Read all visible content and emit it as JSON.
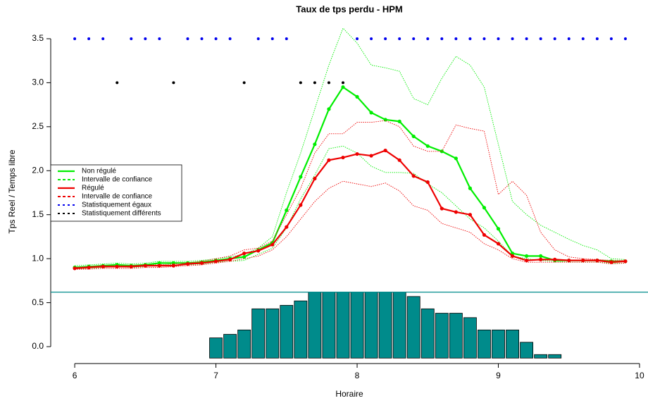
{
  "chart_data": {
    "type": "line",
    "title": "Taux de tps perdu - HPM",
    "x_label": "Horaire",
    "y_label": "Tps Reel / Temps libre",
    "xlim": [
      5.83,
      10.04
    ],
    "ylim": [
      -0.16,
      3.7
    ],
    "xticks": [
      6,
      7,
      8,
      9,
      10
    ],
    "yticks": [
      {
        "value": 0,
        "label": "0.0"
      },
      0.5,
      {
        "value": 1,
        "label": "1.0"
      },
      1.5,
      {
        "value": 2,
        "label": "2.0"
      },
      2.5,
      {
        "value": 3,
        "label": "3.0"
      },
      3.5
    ],
    "legend": "left",
    "x": [
      6.0,
      6.1,
      6.2,
      6.3,
      6.4,
      6.5,
      6.6,
      6.7,
      6.8,
      6.9,
      7.0,
      7.1,
      7.2,
      7.3,
      7.4,
      7.5,
      7.6,
      7.7,
      7.8,
      7.9,
      8.0,
      8.1,
      8.2,
      8.3,
      8.4,
      8.5,
      8.6,
      8.7,
      8.8,
      8.9,
      9.0,
      9.1,
      9.2,
      9.3,
      9.4,
      9.5,
      9.6,
      9.7,
      9.8,
      9.9
    ],
    "series": [
      {
        "name": "Non régulé",
        "color": "#00ee00",
        "style": "solid",
        "marker": true,
        "values": [
          0.9,
          0.91,
          0.92,
          0.93,
          0.92,
          0.93,
          0.95,
          0.95,
          0.95,
          0.96,
          0.98,
          1.0,
          1.02,
          1.1,
          1.18,
          1.55,
          1.93,
          2.3,
          2.7,
          2.95,
          2.84,
          2.66,
          2.58,
          2.56,
          2.39,
          2.28,
          2.22,
          2.14,
          1.8,
          1.58,
          1.34,
          1.06,
          1.03,
          1.03,
          0.98,
          0.98,
          0.98,
          0.98,
          0.97,
          0.97
        ]
      },
      {
        "name": "Intervalle de confiance",
        "color": "#00ee00",
        "style": "dotted",
        "marker": false,
        "values": [
          0.92,
          0.93,
          0.94,
          0.95,
          0.94,
          0.95,
          0.97,
          0.97,
          0.97,
          0.98,
          1.0,
          1.02,
          1.05,
          1.12,
          1.25,
          1.75,
          2.2,
          2.7,
          3.2,
          3.62,
          3.45,
          3.2,
          3.17,
          3.13,
          2.82,
          2.75,
          3.05,
          3.3,
          3.2,
          2.95,
          2.3,
          1.65,
          1.5,
          1.38,
          1.3,
          1.22,
          1.15,
          1.1,
          1.0,
          0.99
        ],
        "values_lower": [
          0.88,
          0.89,
          0.9,
          0.91,
          0.9,
          0.91,
          0.93,
          0.93,
          0.93,
          0.94,
          0.96,
          0.97,
          0.98,
          1.05,
          1.12,
          1.35,
          1.68,
          1.95,
          2.25,
          2.28,
          2.2,
          2.05,
          1.98,
          1.98,
          1.97,
          1.85,
          1.75,
          1.6,
          1.45,
          1.35,
          1.2,
          1.03,
          1.0,
          0.98,
          0.97,
          0.96,
          0.96,
          0.96,
          0.95,
          0.95
        ]
      },
      {
        "name": "Régulé",
        "color": "#ee0000",
        "style": "solid",
        "marker": true,
        "values": [
          0.89,
          0.9,
          0.91,
          0.91,
          0.91,
          0.92,
          0.92,
          0.92,
          0.94,
          0.95,
          0.97,
          0.99,
          1.06,
          1.09,
          1.16,
          1.36,
          1.61,
          1.91,
          2.12,
          2.15,
          2.19,
          2.17,
          2.23,
          2.12,
          1.94,
          1.87,
          1.57,
          1.53,
          1.5,
          1.27,
          1.17,
          1.03,
          0.98,
          0.99,
          0.99,
          0.98,
          0.98,
          0.98,
          0.96,
          0.97
        ]
      },
      {
        "name": "Intervalle de confiance",
        "color": "#ee0000",
        "style": "dotted",
        "marker": false,
        "values": [
          0.9,
          0.91,
          0.92,
          0.92,
          0.92,
          0.93,
          0.93,
          0.94,
          0.95,
          0.97,
          1.0,
          1.03,
          1.1,
          1.12,
          1.2,
          1.5,
          1.8,
          2.2,
          2.42,
          2.42,
          2.55,
          2.55,
          2.57,
          2.5,
          2.28,
          2.22,
          2.22,
          2.52,
          2.48,
          2.45,
          1.73,
          1.88,
          1.72,
          1.3,
          1.1,
          1.02,
          1.0,
          0.99,
          0.98,
          0.98
        ],
        "values_lower": [
          0.88,
          0.88,
          0.89,
          0.89,
          0.89,
          0.9,
          0.9,
          0.91,
          0.92,
          0.93,
          0.95,
          0.97,
          1.0,
          1.03,
          1.1,
          1.25,
          1.45,
          1.65,
          1.8,
          1.88,
          1.85,
          1.82,
          1.86,
          1.77,
          1.6,
          1.55,
          1.4,
          1.35,
          1.3,
          1.17,
          1.1,
          1.0,
          0.96,
          0.96,
          0.96,
          0.96,
          0.96,
          0.96,
          0.94,
          0.95
        ]
      },
      {
        "name": "Statistiquement égaux",
        "color": "#0000ee",
        "style": "points",
        "x": [
          6.0,
          6.1,
          6.2,
          6.4,
          6.5,
          6.6,
          6.8,
          6.9,
          7.0,
          7.1,
          7.3,
          7.4,
          7.5,
          8.0,
          8.1,
          8.2,
          8.3,
          8.4,
          8.5,
          8.6,
          8.7,
          8.8,
          8.9,
          9.0,
          9.1,
          9.2,
          9.3,
          9.4,
          9.5,
          9.6,
          9.7,
          9.8,
          9.9
        ],
        "values": [
          3.5,
          3.5,
          3.5,
          3.5,
          3.5,
          3.5,
          3.5,
          3.5,
          3.5,
          3.5,
          3.5,
          3.5,
          3.5,
          3.5,
          3.5,
          3.5,
          3.5,
          3.5,
          3.5,
          3.5,
          3.5,
          3.5,
          3.5,
          3.5,
          3.5,
          3.5,
          3.5,
          3.5,
          3.5,
          3.5,
          3.5,
          3.5,
          3.5
        ]
      },
      {
        "name": "Statistiquement différents",
        "color": "#000000",
        "style": "points",
        "x": [
          6.3,
          6.7,
          7.2,
          7.6,
          7.7,
          7.8,
          7.9
        ],
        "values": [
          3,
          3,
          3,
          3,
          3,
          3,
          3
        ]
      }
    ],
    "bars": {
      "color": "#008b8b",
      "base": -0.13,
      "x": [
        7.0,
        7.1,
        7.2,
        7.3,
        7.4,
        7.5,
        7.6,
        7.7,
        7.8,
        7.9,
        8.0,
        8.1,
        8.2,
        8.3,
        8.4,
        8.5,
        8.6,
        8.7,
        8.8,
        8.9,
        9.0,
        9.1,
        9.2,
        9.3,
        9.4
      ],
      "values": [
        0.1,
        0.14,
        0.19,
        0.43,
        0.43,
        0.47,
        0.52,
        0.62,
        0.62,
        0.62,
        0.62,
        0.62,
        0.62,
        0.62,
        0.57,
        0.43,
        0.38,
        0.38,
        0.33,
        0.19,
        0.19,
        0.19,
        0.05,
        -0.09,
        -0.09
      ]
    },
    "hline": {
      "value": 0.62,
      "color": "#008b8b"
    }
  }
}
